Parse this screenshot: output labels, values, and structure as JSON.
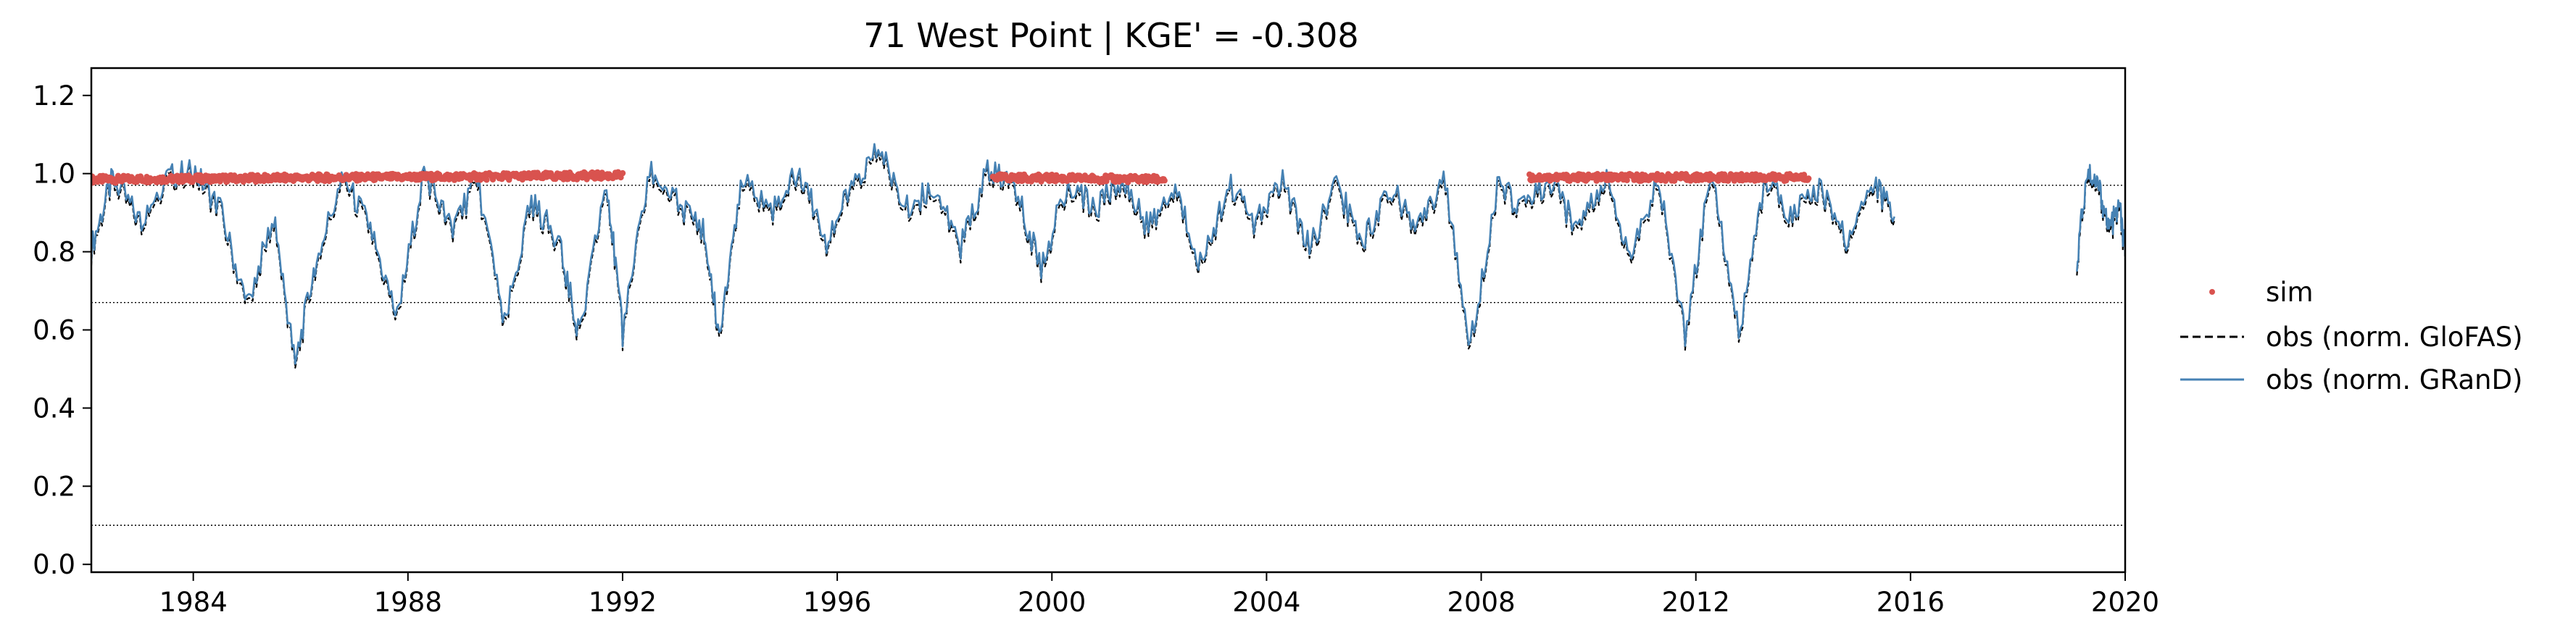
{
  "chart_data": {
    "type": "line",
    "title": "71  West Point | KGE' = -0.308",
    "xlabel": "",
    "ylabel": "",
    "xlim": [
      1982.1,
      2020.0
    ],
    "ylim": [
      -0.02,
      1.27
    ],
    "x_ticks": [
      1984,
      1988,
      1992,
      1996,
      2000,
      2004,
      2008,
      2012,
      2016,
      2020
    ],
    "x_tick_labels": [
      "1984",
      "1988",
      "1992",
      "1996",
      "2000",
      "2004",
      "2008",
      "2012",
      "2016",
      "2020"
    ],
    "y_ticks": [
      0.0,
      0.2,
      0.4,
      0.6,
      0.8,
      1.0,
      1.2
    ],
    "y_tick_labels": [
      "0.0",
      "0.2",
      "0.4",
      "0.6",
      "0.8",
      "1.0",
      "1.2"
    ],
    "reference_lines": [
      0.97,
      0.67,
      0.1
    ],
    "grid": false,
    "legend_position": "right outside",
    "colors": {
      "sim": "#d9534f",
      "glofas": "#000000",
      "grand": "#4682b4"
    },
    "series": [
      {
        "name": "sim",
        "style": "points",
        "segments": [
          {
            "x_start": 1982.1,
            "x_end": 1992.0,
            "values_start": 0.985,
            "values_end": 0.995
          },
          {
            "x_start": 1998.9,
            "x_end": 2002.1,
            "values_start": 0.99,
            "values_end": 0.985
          },
          {
            "x_start": 2008.9,
            "x_end": 2014.1,
            "values_start": 0.99,
            "values_end": 0.99
          }
        ]
      },
      {
        "name": "obs (norm. GloFAS)",
        "style": "dashed",
        "segments": [
          {
            "x": [
              1982.1,
              1982.5,
              1983.0,
              1983.5,
              1984.0,
              1984.5,
              1985.0,
              1985.5,
              1985.9,
              1986.3,
              1986.8,
              1987.3,
              1987.8,
              1988.3,
              1988.8,
              1989.3,
              1989.8,
              1990.3,
              1990.8,
              1991.2,
              1991.7,
              1992.0,
              1992.5,
              1993.0,
              1993.5,
              1993.8,
              1994.2,
              1994.8,
              1995.3,
              1995.8,
              1996.3,
              1996.8,
              1997.3,
              1997.8,
              1998.3,
              1998.8,
              1999.3,
              1999.8,
              2000.3,
              2000.8,
              2001.3,
              2001.8,
              2002.3,
              2002.8,
              2003.3,
              2003.8,
              2004.3,
              2004.8,
              2005.3,
              2005.8,
              2006.3,
              2006.8,
              2007.3,
              2007.8,
              2008.3,
              2008.8,
              2009.3,
              2009.8,
              2010.3,
              2010.8,
              2011.3,
              2011.8,
              2012.3,
              2012.8,
              2013.3,
              2013.8,
              2014.3,
              2014.8,
              2015.3,
              2015.7
            ],
            "y": [
              0.8,
              0.98,
              0.87,
              0.98,
              1.0,
              0.9,
              0.65,
              0.88,
              0.5,
              0.78,
              0.98,
              0.85,
              0.62,
              1.0,
              0.85,
              0.97,
              0.6,
              0.92,
              0.82,
              0.57,
              0.98,
              0.58,
              1.0,
              0.92,
              0.85,
              0.58,
              0.97,
              0.9,
              1.0,
              0.82,
              0.96,
              1.05,
              0.9,
              0.96,
              0.8,
              1.0,
              0.96,
              0.75,
              0.97,
              0.9,
              0.98,
              0.85,
              0.95,
              0.75,
              0.97,
              0.86,
              0.98,
              0.8,
              0.96,
              0.82,
              0.96,
              0.84,
              0.98,
              0.55,
              0.96,
              0.9,
              0.97,
              0.84,
              0.98,
              0.78,
              0.98,
              0.58,
              1.0,
              0.58,
              0.98,
              0.88,
              0.96,
              0.82,
              0.97,
              0.88
            ]
          },
          {
            "x": [
              2019.1,
              2019.3,
              2019.5,
              2019.7,
              2019.9,
              2020.0
            ],
            "y": [
              0.77,
              1.0,
              0.96,
              0.85,
              0.9,
              0.78
            ]
          }
        ]
      },
      {
        "name": "obs (norm. GRanD)",
        "style": "solid",
        "segments": [
          {
            "x": [
              1982.1,
              1982.5,
              1983.0,
              1983.5,
              1984.0,
              1984.5,
              1985.0,
              1985.5,
              1985.9,
              1986.3,
              1986.8,
              1987.3,
              1987.8,
              1988.3,
              1988.8,
              1989.3,
              1989.8,
              1990.3,
              1990.8,
              1991.2,
              1991.7,
              1992.0,
              1992.5,
              1993.0,
              1993.5,
              1993.8,
              1994.2,
              1994.8,
              1995.3,
              1995.8,
              1996.3,
              1996.8,
              1997.3,
              1997.8,
              1998.3,
              1998.8,
              1999.3,
              1999.8,
              2000.3,
              2000.8,
              2001.3,
              2001.8,
              2002.3,
              2002.8,
              2003.3,
              2003.8,
              2004.3,
              2004.8,
              2005.3,
              2005.8,
              2006.3,
              2006.8,
              2007.3,
              2007.8,
              2008.3,
              2008.8,
              2009.3,
              2009.8,
              2010.3,
              2010.8,
              2011.3,
              2011.8,
              2012.3,
              2012.8,
              2013.3,
              2013.8,
              2014.3,
              2014.8,
              2015.3,
              2015.7
            ],
            "y": [
              0.81,
              0.99,
              0.88,
              0.99,
              1.01,
              0.91,
              0.66,
              0.89,
              0.51,
              0.79,
              0.99,
              0.86,
              0.63,
              1.01,
              0.86,
              0.98,
              0.61,
              0.93,
              0.83,
              0.58,
              0.99,
              0.59,
              1.01,
              0.93,
              0.86,
              0.59,
              0.98,
              0.91,
              1.01,
              0.83,
              0.97,
              1.06,
              0.91,
              0.97,
              0.81,
              1.01,
              0.97,
              0.76,
              0.98,
              0.91,
              0.99,
              0.86,
              0.96,
              0.76,
              0.98,
              0.87,
              0.99,
              0.81,
              0.97,
              0.83,
              0.97,
              0.85,
              0.99,
              0.56,
              0.97,
              0.91,
              0.98,
              0.85,
              0.99,
              0.79,
              0.99,
              0.59,
              1.01,
              0.59,
              0.99,
              0.89,
              0.97,
              0.83,
              0.98,
              0.89
            ]
          },
          {
            "x": [
              2019.1,
              2019.3,
              2019.5,
              2019.7,
              2019.9,
              2020.0
            ],
            "y": [
              0.78,
              1.01,
              0.97,
              0.86,
              0.91,
              0.79
            ]
          }
        ]
      }
    ],
    "legend": [
      {
        "key": "sim",
        "label": "sim"
      },
      {
        "key": "glofas",
        "label": "obs (norm. GloFAS)"
      },
      {
        "key": "grand",
        "label": "obs (norm. GRanD)"
      }
    ]
  }
}
